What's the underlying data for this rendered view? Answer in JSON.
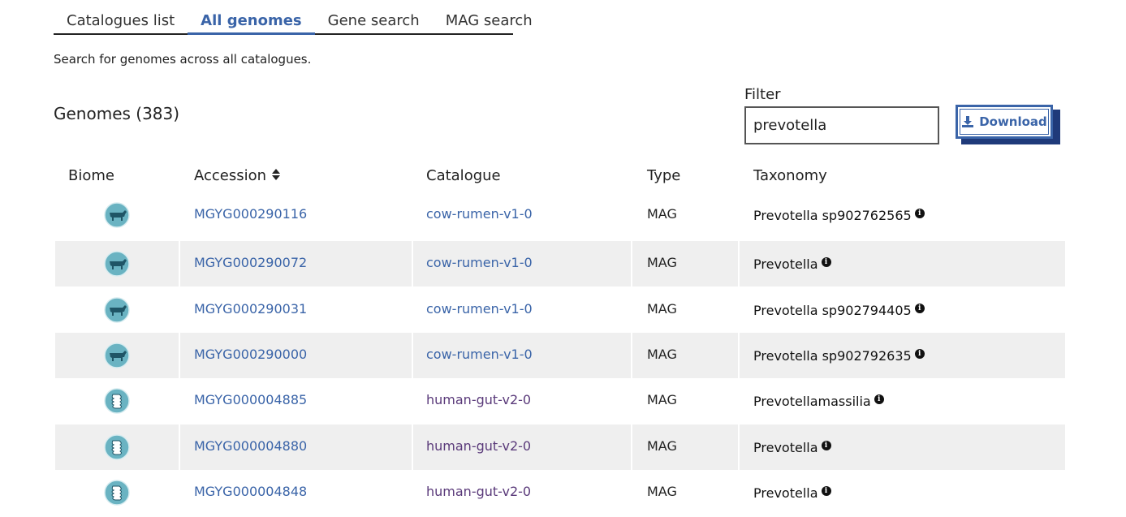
{
  "tabs": [
    {
      "label": "Catalogues list",
      "active": false
    },
    {
      "label": "All genomes",
      "active": true
    },
    {
      "label": "Gene search",
      "active": false
    },
    {
      "label": "MAG search",
      "active": false
    }
  ],
  "intro": "Search for genomes across all catalogues.",
  "section_title": "Genomes (383)",
  "filter": {
    "label": "Filter",
    "value": "prevotella"
  },
  "download": {
    "label": "Download",
    "icon": "download-icon"
  },
  "columns": {
    "biome": "Biome",
    "accession": "Accession",
    "catalogue": "Catalogue",
    "type": "Type",
    "taxonomy": "Taxonomy"
  },
  "rows": [
    {
      "biome": "cow-rumen",
      "accession": "MGYG000290116",
      "catalogue": "cow-rumen-v1-0",
      "type": "MAG",
      "taxonomy": "Prevotella sp902762565"
    },
    {
      "biome": "cow-rumen",
      "accession": "MGYG000290072",
      "catalogue": "cow-rumen-v1-0",
      "type": "MAG",
      "taxonomy": "Prevotella"
    },
    {
      "biome": "cow-rumen",
      "accession": "MGYG000290031",
      "catalogue": "cow-rumen-v1-0",
      "type": "MAG",
      "taxonomy": "Prevotella sp902794405"
    },
    {
      "biome": "cow-rumen",
      "accession": "MGYG000290000",
      "catalogue": "cow-rumen-v1-0",
      "type": "MAG",
      "taxonomy": "Prevotella sp902792635"
    },
    {
      "biome": "human-gut",
      "accession": "MGYG000004885",
      "catalogue": "human-gut-v2-0",
      "type": "MAG",
      "taxonomy": "Prevotellamassilia"
    },
    {
      "biome": "human-gut",
      "accession": "MGYG000004880",
      "catalogue": "human-gut-v2-0",
      "type": "MAG",
      "taxonomy": "Prevotella"
    },
    {
      "biome": "human-gut",
      "accession": "MGYG000004848",
      "catalogue": "human-gut-v2-0",
      "type": "MAG",
      "taxonomy": "Prevotella"
    }
  ],
  "colors": {
    "accent": "#3a64a8",
    "visited": "#5a3a7a",
    "biome_icon": "#5aa8b8",
    "row_shade": "#efefef"
  }
}
